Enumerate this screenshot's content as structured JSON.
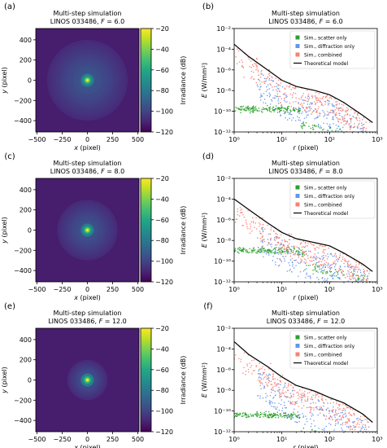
{
  "chart_data": [
    {
      "type": "heatmap",
      "panel_label": "(a)",
      "title_line1": "Multi-step simulation",
      "title_line2": "LINOS 033486, F = 6.0",
      "xlabel": "x (pixel)",
      "ylabel": "y (pixel)",
      "xlim": [
        -512,
        512
      ],
      "ylim": [
        -512,
        512
      ],
      "xticks": [
        -500,
        -250,
        0,
        250,
        500
      ],
      "yticks": [
        -400,
        -200,
        0,
        200,
        400
      ],
      "colorbar_label": "Irradiance (dB)",
      "colorbar_range": [
        -120,
        -20
      ],
      "colorbar_ticks": [
        -20,
        -40,
        -60,
        -80,
        -100,
        -120
      ],
      "halo_radius_pixel": 400,
      "peak_db": -20,
      "background_db": -112
    },
    {
      "type": "scatter",
      "panel_label": "(b)",
      "title_line1": "Multi-step simulation",
      "title_line2": "LINOS 033486, F = 6.0",
      "xlabel": "r (pixel)",
      "ylabel": "E (W/mm²)",
      "xscale": "log",
      "yscale": "log",
      "xlim": [
        1,
        1000
      ],
      "ylim": [
        1e-12,
        0.01
      ],
      "xtick_labels": [
        "10⁰",
        "10¹",
        "10²",
        "10³"
      ],
      "ytick_labels": [
        "10⁻¹²",
        "10⁻¹⁰",
        "10⁻⁸",
        "10⁻⁶",
        "10⁻⁴",
        "10⁻²"
      ],
      "legend_position": "top-right",
      "series": [
        {
          "name": "Sim., scatter only",
          "color": "#2ca02c",
          "marker": "square",
          "level_exp": -9.8,
          "x_range": [
            1,
            40
          ],
          "knee_x": 25,
          "tail_end_x": 700
        },
        {
          "name": "Sim., diffraction only",
          "color": "#6495ed",
          "marker": "square",
          "x_range": [
            3,
            700
          ]
        },
        {
          "name": "Sim., combined",
          "color": "#fa8072",
          "marker": "square",
          "x_range": [
            1,
            700
          ]
        },
        {
          "name": "Theoretical model",
          "color": "#000000",
          "marker": "line",
          "x": [
            1,
            2,
            5,
            10,
            20,
            50,
            100,
            200,
            500,
            800
          ],
          "y": [
            0.0003,
            2e-05,
            1e-06,
            1e-07,
            2.5e-08,
            1e-08,
            4e-09,
            7e-10,
            4e-11,
            8e-12
          ]
        }
      ]
    },
    {
      "type": "heatmap",
      "panel_label": "(c)",
      "title_line1": "Multi-step simulation",
      "title_line2": "LINOS 033486, F = 8.0",
      "xlabel": "x (pixel)",
      "ylabel": "y (pixel)",
      "xlim": [
        -512,
        512
      ],
      "ylim": [
        -512,
        512
      ],
      "xticks": [
        -500,
        -250,
        0,
        250,
        500
      ],
      "yticks": [
        -400,
        -200,
        0,
        200,
        400
      ],
      "colorbar_label": "Irradiance (dB)",
      "colorbar_range": [
        -120,
        -20
      ],
      "colorbar_ticks": [
        -20,
        -40,
        -60,
        -80,
        -100,
        -120
      ],
      "halo_radius_pixel": 300,
      "peak_db": -20,
      "background_db": -112
    },
    {
      "type": "scatter",
      "panel_label": "(d)",
      "title_line1": "Multi-step simulation",
      "title_line2": "LINOS 033486, F = 8.0",
      "xlabel": "r (pixel)",
      "ylabel": "E (W/mm²)",
      "xscale": "log",
      "yscale": "log",
      "xlim": [
        1,
        1000
      ],
      "ylim": [
        1e-12,
        0.01
      ],
      "xtick_labels": [
        "10⁰",
        "10¹",
        "10²",
        "10³"
      ],
      "ytick_labels": [
        "10⁻¹²",
        "10⁻¹⁰",
        "10⁻⁸",
        "10⁻⁶",
        "10⁻⁴",
        "10⁻²"
      ],
      "legend_position": "top-right",
      "series": [
        {
          "name": "Sim., scatter only",
          "color": "#2ca02c",
          "marker": "square",
          "level_exp": -9.0,
          "x_range": [
            1,
            40
          ],
          "knee_x": 30,
          "tail_end_x": 700
        },
        {
          "name": "Sim., diffraction only",
          "color": "#6495ed",
          "marker": "square",
          "x_range": [
            3,
            700
          ]
        },
        {
          "name": "Sim., combined",
          "color": "#fa8072",
          "marker": "square",
          "x_range": [
            1,
            700
          ]
        },
        {
          "name": "Theoretical model",
          "color": "#000000",
          "marker": "line",
          "x": [
            1,
            2,
            5,
            10,
            20,
            50,
            100,
            200,
            500,
            800
          ],
          "y": [
            0.0001,
            1e-05,
            5e-07,
            6e-08,
            1.5e-08,
            6e-09,
            3e-09,
            6e-10,
            5e-11,
            1e-11
          ]
        }
      ]
    },
    {
      "type": "heatmap",
      "panel_label": "(e)",
      "title_line1": "Multi-step simulation",
      "title_line2": "LINOS 033486, F = 12.0",
      "xlabel": "x (pixel)",
      "ylabel": "y (pixel)",
      "xlim": [
        -512,
        512
      ],
      "ylim": [
        -512,
        512
      ],
      "xticks": [
        -500,
        -250,
        0,
        250,
        500
      ],
      "yticks": [
        -400,
        -200,
        0,
        200,
        400
      ],
      "colorbar_label": "Irradiance (dB)",
      "colorbar_range": [
        -120,
        -20
      ],
      "colorbar_ticks": [
        -20,
        -40,
        -60,
        -80,
        -100,
        -120
      ],
      "halo_radius_pixel": 200,
      "peak_db": -20,
      "background_db": -112
    },
    {
      "type": "scatter",
      "panel_label": "(f)",
      "title_line1": "Multi-step simulation",
      "title_line2": "LINOS 033486, F = 12.0",
      "xlabel": "r (pixel)",
      "ylabel": "E (W/mm²)",
      "xscale": "log",
      "yscale": "log",
      "xlim": [
        1,
        1000
      ],
      "ylim": [
        1e-12,
        0.01
      ],
      "xtick_labels": [
        "10⁰",
        "10¹",
        "10²",
        "10³"
      ],
      "ytick_labels": [
        "10⁻¹²",
        "10⁻¹⁰",
        "10⁻⁸",
        "10⁻⁶",
        "10⁻⁴",
        "10⁻²"
      ],
      "legend_position": "top-right",
      "series": [
        {
          "name": "Sim., scatter only",
          "color": "#2ca02c",
          "marker": "square",
          "level_exp": -10.4,
          "x_range": [
            1,
            40
          ],
          "knee_x": 25,
          "tail_end_x": 700
        },
        {
          "name": "Sim., diffraction only",
          "color": "#6495ed",
          "marker": "square",
          "x_range": [
            3,
            700
          ]
        },
        {
          "name": "Sim., combined",
          "color": "#fa8072",
          "marker": "square",
          "x_range": [
            1,
            700
          ]
        },
        {
          "name": "Theoretical model",
          "color": "#000000",
          "marker": "line",
          "x": [
            1,
            2,
            5,
            10,
            20,
            50,
            100,
            200,
            500,
            800
          ],
          "y": [
            0.0005,
            3e-05,
            2e-06,
            2e-07,
            3e-08,
            8e-09,
            2e-09,
            6e-10,
            5e-11,
            8e-12
          ]
        }
      ]
    }
  ]
}
